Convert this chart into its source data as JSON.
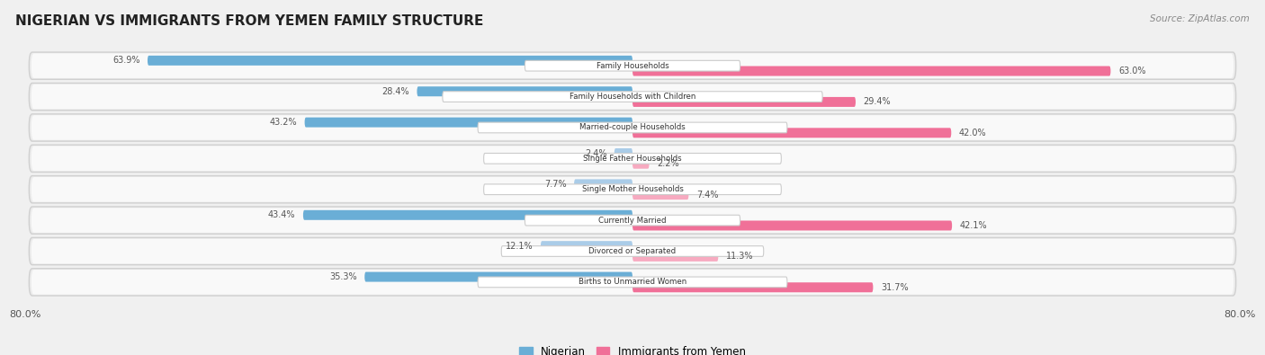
{
  "title": "NIGERIAN VS IMMIGRANTS FROM YEMEN FAMILY STRUCTURE",
  "source": "Source: ZipAtlas.com",
  "categories": [
    "Family Households",
    "Family Households with Children",
    "Married-couple Households",
    "Single Father Households",
    "Single Mother Households",
    "Currently Married",
    "Divorced or Separated",
    "Births to Unmarried Women"
  ],
  "nigerian_values": [
    63.9,
    28.4,
    43.2,
    2.4,
    7.7,
    43.4,
    12.1,
    35.3
  ],
  "yemen_values": [
    63.0,
    29.4,
    42.0,
    2.2,
    7.4,
    42.1,
    11.3,
    31.7
  ],
  "nigerian_color": "#6aaed6",
  "nigerian_color_light": "#aacce8",
  "yemen_color": "#f07098",
  "yemen_color_light": "#f7aac0",
  "axis_max": 80.0,
  "background_color": "#f0f0f0",
  "row_bg_color": "#e8e8e8",
  "row_bg_color_inner": "#f8f8f8",
  "nigerian_label": "Nigerian",
  "yemen_label": "Immigrants from Yemen"
}
